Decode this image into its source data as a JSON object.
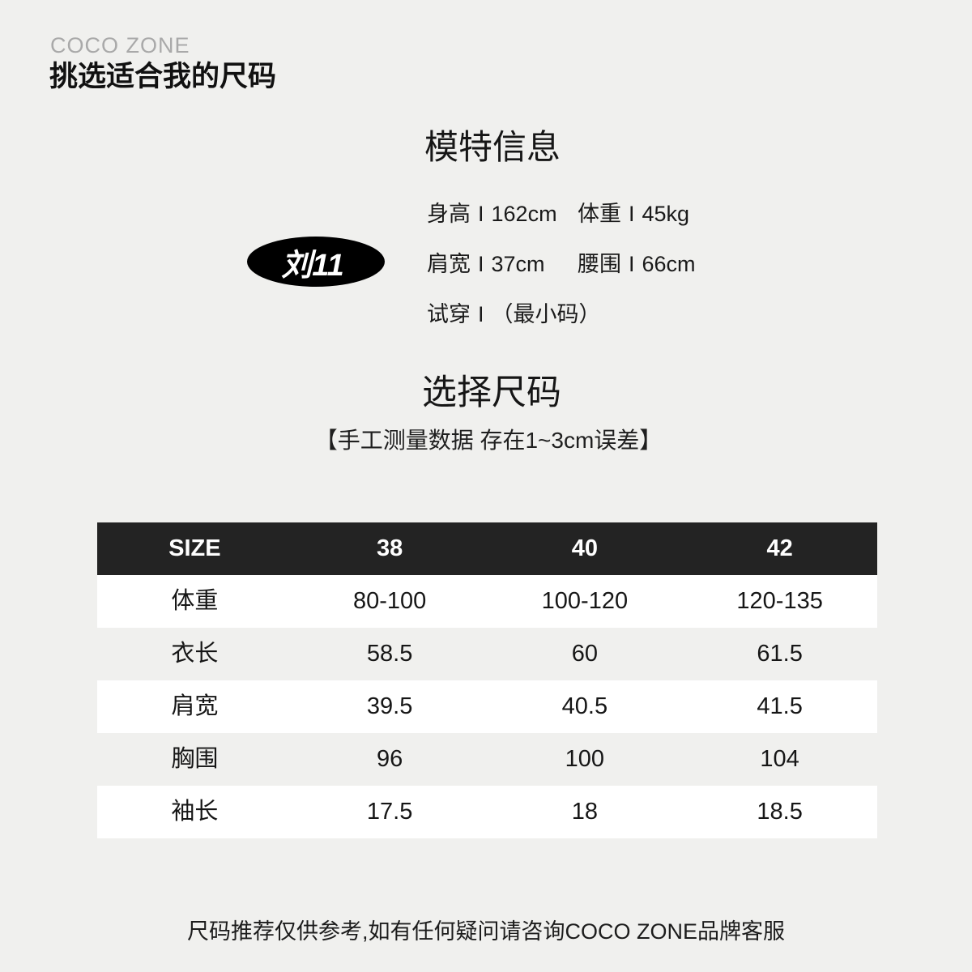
{
  "page": {
    "brand": "COCO ZONE",
    "title": "挑选适合我的尺码",
    "footer": "尺码推荐仅供参考,如有任何疑问请咨询COCO ZONE品牌客服"
  },
  "model": {
    "heading": "模特信息",
    "badge": "刘11",
    "info": [
      {
        "label": "身高",
        "sep": "I",
        "value": "162cm"
      },
      {
        "label": "体重",
        "sep": "I",
        "value": "45kg"
      },
      {
        "label": "肩宽",
        "sep": "I",
        "value": "37cm"
      },
      {
        "label": "腰围",
        "sep": "I",
        "value": "66cm"
      },
      {
        "label": "试穿",
        "sep": "I",
        "value": "（最小码）"
      }
    ]
  },
  "size_section": {
    "heading": "选择尺码",
    "note": "【手工测量数据 存在1~3cm误差】"
  },
  "size_table": {
    "header": [
      "SIZE",
      "38",
      "40",
      "42"
    ],
    "rows": [
      {
        "label": "体重",
        "values": [
          "80-100",
          "100-120",
          "120-135"
        ]
      },
      {
        "label": "衣长",
        "values": [
          "58.5",
          "60",
          "61.5"
        ]
      },
      {
        "label": "肩宽",
        "values": [
          "39.5",
          "40.5",
          "41.5"
        ]
      },
      {
        "label": "胸围",
        "values": [
          "96",
          "100",
          "104"
        ]
      },
      {
        "label": "袖长",
        "values": [
          "17.5",
          "18",
          "18.5"
        ]
      }
    ]
  },
  "colors": {
    "page_background": "#f0f0ee",
    "table_header_background": "#232323",
    "table_row_white": "#ffffff",
    "badge_background": "#000000",
    "brand_gray": "#a9a9a9",
    "text": "#1a1a1a"
  }
}
